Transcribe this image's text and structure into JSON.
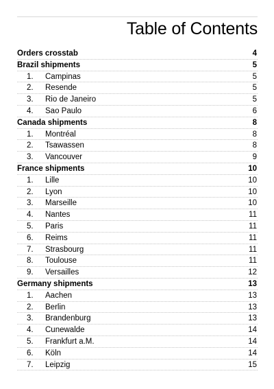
{
  "title": "Table of Contents",
  "sections": [
    {
      "title": "Orders crosstab",
      "page": "4",
      "entries": []
    },
    {
      "title": "Brazil shipments",
      "page": "5",
      "entries": [
        {
          "num": "1.",
          "label": "Campinas",
          "page": "5"
        },
        {
          "num": "2.",
          "label": "Resende",
          "page": "5"
        },
        {
          "num": "3.",
          "label": "Rio de Janeiro",
          "page": "5"
        },
        {
          "num": "4.",
          "label": "Sao Paulo",
          "page": "6"
        }
      ]
    },
    {
      "title": "Canada shipments",
      "page": "8",
      "entries": [
        {
          "num": "1.",
          "label": "Montréal",
          "page": "8"
        },
        {
          "num": "2.",
          "label": "Tsawassen",
          "page": "8"
        },
        {
          "num": "3.",
          "label": "Vancouver",
          "page": "9"
        }
      ]
    },
    {
      "title": "France shipments",
      "page": "10",
      "entries": [
        {
          "num": "1.",
          "label": "Lille",
          "page": "10"
        },
        {
          "num": "2.",
          "label": "Lyon",
          "page": "10"
        },
        {
          "num": "3.",
          "label": "Marseille",
          "page": "10"
        },
        {
          "num": "4.",
          "label": "Nantes",
          "page": "11"
        },
        {
          "num": "5.",
          "label": "Paris",
          "page": "11"
        },
        {
          "num": "6.",
          "label": "Reims",
          "page": "11"
        },
        {
          "num": "7.",
          "label": "Strasbourg",
          "page": "11"
        },
        {
          "num": "8.",
          "label": "Toulouse",
          "page": "11"
        },
        {
          "num": "9.",
          "label": "Versailles",
          "page": "12"
        }
      ]
    },
    {
      "title": "Germany shipments",
      "page": "13",
      "entries": [
        {
          "num": "1.",
          "label": "Aachen",
          "page": "13"
        },
        {
          "num": "2.",
          "label": "Berlin",
          "page": "13"
        },
        {
          "num": "3.",
          "label": "Brandenburg",
          "page": "13"
        },
        {
          "num": "4.",
          "label": "Cunewalde",
          "page": "14"
        },
        {
          "num": "5.",
          "label": "Frankfurt a.M.",
          "page": "14"
        },
        {
          "num": "6.",
          "label": "Köln",
          "page": "14"
        },
        {
          "num": "7.",
          "label": "Leipzig",
          "page": "15"
        }
      ]
    }
  ]
}
